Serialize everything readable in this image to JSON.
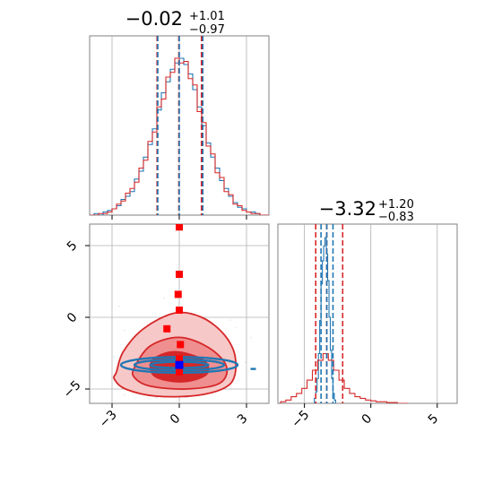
{
  "chart_data": [
    {
      "type": "histogram",
      "panel": "marginal-param-1",
      "title": {
        "median": "−0.02",
        "upper": "+1.01",
        "lower": "−0.97"
      },
      "x_range": [
        -4,
        4
      ],
      "x_ticks": [
        -3,
        0,
        3
      ],
      "x_tick_labels": [],
      "grid": true,
      "bins_x": [
        -3.9,
        -3.7,
        -3.5,
        -3.3,
        -3.1,
        -2.9,
        -2.7,
        -2.5,
        -2.3,
        -2.1,
        -1.9,
        -1.7,
        -1.5,
        -1.3,
        -1.1,
        -0.9,
        -0.7,
        -0.5,
        -0.3,
        -0.1,
        0.1,
        0.3,
        0.5,
        0.7,
        0.9,
        1.1,
        1.3,
        1.5,
        1.7,
        1.9,
        2.1,
        2.3,
        2.5,
        2.7,
        2.9,
        3.1,
        3.3,
        3.5,
        3.7,
        3.9
      ],
      "series": [
        {
          "name": "",
          "color": "#1f77b4",
          "counts": [
            0.0,
            0.01,
            0.0,
            0.02,
            0.03,
            0.04,
            0.06,
            0.1,
            0.12,
            0.15,
            0.23,
            0.28,
            0.37,
            0.45,
            0.55,
            0.67,
            0.78,
            0.85,
            0.93,
            0.97,
            1.0,
            0.96,
            0.9,
            0.8,
            0.69,
            0.57,
            0.46,
            0.37,
            0.3,
            0.22,
            0.17,
            0.12,
            0.08,
            0.05,
            0.04,
            0.02,
            0.02,
            0.01,
            0.0,
            0.0
          ]
        },
        {
          "name": "",
          "color": "#d62728",
          "counts": [
            0.0,
            0.0,
            0.01,
            0.01,
            0.02,
            0.04,
            0.07,
            0.09,
            0.14,
            0.17,
            0.21,
            0.3,
            0.35,
            0.47,
            0.53,
            0.69,
            0.74,
            0.88,
            0.91,
            1.0,
            0.97,
            0.98,
            0.87,
            0.83,
            0.66,
            0.59,
            0.44,
            0.39,
            0.27,
            0.24,
            0.15,
            0.13,
            0.07,
            0.06,
            0.03,
            0.02,
            0.01,
            0.01,
            0.0,
            0.0
          ]
        }
      ],
      "quantile_lines": [
        {
          "color": "#d62728",
          "x": [
            -0.99,
            -0.02,
            0.99
          ]
        },
        {
          "color": "#1f77b4",
          "x": [
            -0.96,
            0.0,
            1.05
          ]
        }
      ]
    },
    {
      "type": "histogram",
      "panel": "marginal-param-2",
      "title": {
        "median": "−3.32",
        "upper": "+1.20",
        "lower": "−0.83"
      },
      "x_range": [
        -7,
        6.5
      ],
      "x_ticks": [
        -5,
        0,
        5
      ],
      "x_tick_labels": [
        "−5",
        "0",
        "5"
      ],
      "grid": true,
      "series": [
        {
          "name": "",
          "color": "#1f77b4",
          "bins_x": [
            -4.2,
            -4.1,
            -4.0,
            -3.9,
            -3.8,
            -3.7,
            -3.6,
            -3.5,
            -3.4,
            -3.3,
            -3.2,
            -3.1,
            -3.0,
            -2.9,
            -2.8,
            -2.7
          ],
          "counts": [
            0.03,
            0.07,
            0.15,
            0.3,
            0.5,
            0.72,
            0.86,
            0.95,
            1.0,
            0.9,
            0.74,
            0.52,
            0.32,
            0.15,
            0.06,
            0.02
          ]
        },
        {
          "name": "",
          "color": "#d62728",
          "bins_x": [
            -6.6,
            -6.2,
            -5.8,
            -5.4,
            -5.0,
            -4.6,
            -4.2,
            -3.8,
            -3.4,
            -3.0,
            -2.6,
            -2.2,
            -1.8,
            -1.4,
            -1.0,
            -0.6,
            -0.2,
            0.2,
            0.6,
            1.0,
            1.4,
            1.8,
            2.2,
            2.6
          ],
          "counts": [
            0.01,
            0.02,
            0.04,
            0.06,
            0.09,
            0.14,
            0.2,
            0.26,
            0.3,
            0.26,
            0.2,
            0.14,
            0.09,
            0.06,
            0.04,
            0.03,
            0.02,
            0.015,
            0.01,
            0.01,
            0.005,
            0.005,
            0.0,
            0.0
          ]
        }
      ],
      "quantile_lines": [
        {
          "color": "#d62728",
          "x": [
            -4.15,
            -3.32,
            -2.12
          ]
        },
        {
          "color": "#1f77b4",
          "x": [
            -3.75,
            -3.32,
            -2.85
          ]
        }
      ]
    },
    {
      "type": "contour",
      "panel": "joint-param-1-param-2",
      "x_range": [
        -4,
        4
      ],
      "y_range": [
        -6,
        6.5
      ],
      "x_ticks": [
        -3,
        0,
        3
      ],
      "x_tick_labels": [
        "−3",
        "0",
        "3"
      ],
      "y_ticks": [
        -5,
        0,
        5
      ],
      "y_tick_labels": [
        "−5",
        "0",
        "5"
      ],
      "grid": true,
      "red_contours": [
        {
          "level": "outer",
          "fill": "#f7c8c8",
          "points": [
            [
              -2.8,
              -3.8
            ],
            [
              -2.5,
              -2.4
            ],
            [
              -1.6,
              -0.8
            ],
            [
              -0.2,
              0.3
            ],
            [
              1.0,
              0.0
            ],
            [
              2.0,
              -1.2
            ],
            [
              2.5,
              -2.8
            ],
            [
              2.3,
              -4.6
            ],
            [
              1.0,
              -5.4
            ],
            [
              -1.0,
              -5.5
            ],
            [
              -2.4,
              -5.0
            ],
            [
              -2.9,
              -4.3
            ]
          ]
        },
        {
          "level": "middle",
          "fill": "#ef8f90",
          "points": [
            [
              -2.0,
              -3.5
            ],
            [
              -1.3,
              -2.0
            ],
            [
              0.0,
              -1.4
            ],
            [
              1.3,
              -2.1
            ],
            [
              2.1,
              -3.4
            ],
            [
              1.8,
              -4.6
            ],
            [
              0.3,
              -5.0
            ],
            [
              -1.3,
              -4.8
            ],
            [
              -2.0,
              -4.2
            ]
          ]
        },
        {
          "level": "inner",
          "fill": "#d62728",
          "points": [
            [
              -1.2,
              -3.0
            ],
            [
              -0.2,
              -2.4
            ],
            [
              1.1,
              -3.0
            ],
            [
              1.2,
              -4.0
            ],
            [
              0.1,
              -4.5
            ],
            [
              -1.1,
              -4.1
            ]
          ]
        }
      ],
      "blue_rings": [
        {
          "rx": 2.6,
          "ry": 0.55
        },
        {
          "rx": 2.0,
          "ry": 0.38
        },
        {
          "rx": 1.3,
          "ry": 0.22
        }
      ],
      "blue_center": [
        0.0,
        -3.32
      ],
      "blue_outlier": [
        3.3,
        -3.6
      ],
      "red_points": [
        [
          0.0,
          6.3
        ],
        [
          0.0,
          3.0
        ],
        [
          -0.05,
          1.6
        ],
        [
          0.0,
          0.5
        ],
        [
          -0.55,
          -0.8
        ],
        [
          0.05,
          -1.9
        ],
        [
          0.0,
          -2.9
        ],
        [
          0.0,
          -3.8
        ]
      ],
      "blue_marker": [
        0.0,
        -3.32
      ]
    }
  ]
}
